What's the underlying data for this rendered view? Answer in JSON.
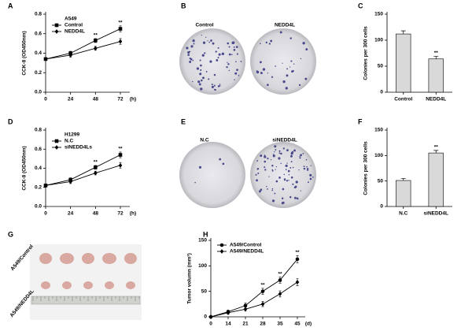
{
  "chart_data": [
    {
      "type": "line",
      "panel": "A",
      "legend_title": "A549",
      "ylabel": "CCK-8 (OD450nm)",
      "xlabel": "(h)",
      "x": [
        0,
        24,
        48,
        72
      ],
      "xlim": [
        0,
        72
      ],
      "xticks": [
        0,
        24,
        48,
        72
      ],
      "ylim": [
        0,
        0.8
      ],
      "yticks": [
        {
          "value": 0,
          "label": "0.0"
        },
        {
          "value": 0.2,
          "label": "0.2"
        },
        {
          "value": 0.4,
          "label": "0.4"
        },
        {
          "value": 0.6,
          "label": "0.6"
        },
        {
          "value": 0.8,
          "label": "0.8"
        }
      ],
      "series": [
        {
          "name": "Control",
          "color": "#000000",
          "marker": "square",
          "values": [
            0.34,
            0.4,
            0.53,
            0.65
          ],
          "errors": [
            0.01,
            0.02,
            0.02,
            0.03
          ]
        },
        {
          "name": "NEDD4L",
          "color": "#000000",
          "marker": "diamond",
          "values": [
            0.34,
            0.38,
            0.45,
            0.52
          ],
          "errors": [
            0.01,
            0.02,
            0.02,
            0.03
          ]
        }
      ],
      "significance": [
        null,
        null,
        "**",
        "**"
      ]
    },
    {
      "type": "bar",
      "panel": "C",
      "ylabel": "Colonies per 300 cells",
      "color": "#d9d9d9",
      "categories": [
        "Control",
        "NEDD4L"
      ],
      "values": [
        112,
        64
      ],
      "errors": [
        6,
        5
      ],
      "ylim": [
        0,
        150
      ],
      "yticks": [
        0,
        50,
        100,
        150
      ],
      "significance": [
        null,
        "**"
      ]
    },
    {
      "type": "line",
      "panel": "D",
      "legend_title": "H1299",
      "ylabel": "CCK-8 (OD450nm)",
      "xlabel": "(h)",
      "x": [
        0,
        24,
        48,
        72
      ],
      "xlim": [
        0,
        72
      ],
      "xticks": [
        0,
        24,
        48,
        72
      ],
      "ylim": [
        0,
        0.8
      ],
      "yticks": [
        {
          "value": 0,
          "label": "0.0"
        },
        {
          "value": 0.2,
          "label": "0.2"
        },
        {
          "value": 0.4,
          "label": "0.4"
        },
        {
          "value": 0.6,
          "label": "0.6"
        },
        {
          "value": 0.8,
          "label": "0.8"
        }
      ],
      "series": [
        {
          "name": "N.C",
          "color": "#000000",
          "marker": "square",
          "values": [
            0.22,
            0.28,
            0.41,
            0.54
          ],
          "errors": [
            0.01,
            0.02,
            0.02,
            0.03
          ]
        },
        {
          "name": "siNEDD4Ls",
          "color": "#000000",
          "marker": "diamond",
          "values": [
            0.22,
            0.26,
            0.35,
            0.43
          ],
          "errors": [
            0.01,
            0.02,
            0.02,
            0.03
          ]
        }
      ],
      "significance": [
        null,
        null,
        "**",
        "**"
      ]
    },
    {
      "type": "bar",
      "panel": "F",
      "ylabel": "Colonies per 300 cells",
      "color": "#d9d9d9",
      "categories": [
        "N.C",
        "siNEDD4L"
      ],
      "values": [
        51,
        105
      ],
      "errors": [
        4,
        5
      ],
      "ylim": [
        0,
        150
      ],
      "yticks": [
        0,
        50,
        100,
        150
      ],
      "significance": [
        null,
        "**"
      ]
    },
    {
      "type": "line",
      "panel": "H",
      "ylabel": "Tumor volumn (mm³)",
      "xlabel": "(d)",
      "categories": [
        "0",
        "14",
        "21",
        "28",
        "35",
        "45"
      ],
      "ylim": [
        0,
        150
      ],
      "yticks": [
        0,
        50,
        100,
        150
      ],
      "series": [
        {
          "name": "A549/Control",
          "color": "#000000",
          "marker": "circle",
          "values": [
            0,
            10,
            22,
            50,
            72,
            113
          ],
          "errors": [
            1,
            3,
            5,
            6,
            6,
            7
          ]
        },
        {
          "name": "A549/NEDD4L",
          "color": "#000000",
          "marker": "diamond",
          "values": [
            0,
            8,
            15,
            25,
            45,
            68
          ],
          "errors": [
            1,
            3,
            4,
            5,
            6,
            7
          ]
        }
      ],
      "significance": [
        null,
        null,
        null,
        "**",
        "**",
        "**"
      ]
    }
  ],
  "photos": [
    {
      "panel": "B",
      "labels": [
        "Control",
        "NEDD4L"
      ]
    },
    {
      "panel": "E",
      "labels": [
        "N.C",
        "siNEDD4L"
      ]
    },
    {
      "panel": "G",
      "labels": [
        "A549/Control",
        "A549/NEDD4L"
      ]
    }
  ]
}
